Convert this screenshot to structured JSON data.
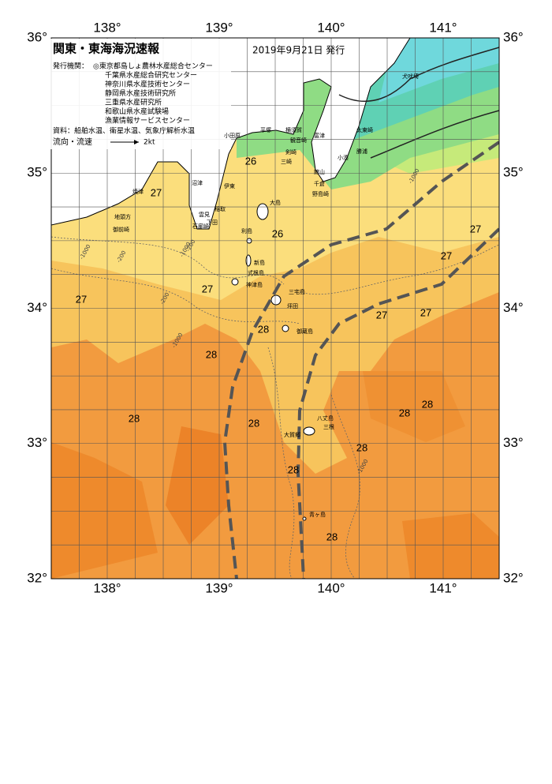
{
  "header": {
    "title": "関東・東海海況速報",
    "date": "2019年9月21日 発行"
  },
  "issuers": {
    "label": "発行機関：",
    "items": [
      "◎東京都島しょ農林水産総合センター",
      "千葉県水産総合研究センター",
      "神奈川県水産技術センター",
      "静岡県水産技術研究所",
      "三重県水産研究所",
      "和歌山県水産試験場",
      "漁業情報サービスセンター"
    ]
  },
  "source": "資料：船舶水温、衛星水温、気象庁解析水温",
  "legend": {
    "label": "流向・流速",
    "speed": "2kt"
  },
  "axes": {
    "lon_ticks": [
      {
        "value": 138,
        "label": "138°"
      },
      {
        "value": 139,
        "label": "139°"
      },
      {
        "value": 140,
        "label": "140°"
      },
      {
        "value": 141,
        "label": "141°"
      }
    ],
    "lat_ticks": [
      {
        "value": 36,
        "label": "36°"
      },
      {
        "value": 35,
        "label": "35°"
      },
      {
        "value": 34,
        "label": "34°"
      },
      {
        "value": 33,
        "label": "33°"
      },
      {
        "value": 32,
        "label": "32°"
      }
    ],
    "lon_range": [
      137.5,
      141.5
    ],
    "lat_range": [
      32,
      36
    ]
  },
  "temperature_labels": [
    26,
    27,
    26,
    27,
    27,
    27,
    27,
    27,
    27,
    28,
    28,
    28,
    28,
    28,
    28,
    28,
    28,
    28
  ],
  "place_names": [
    "犬吠埼",
    "太東崎",
    "勝浦",
    "小湊",
    "館山",
    "千倉",
    "野島崎",
    "富津",
    "観音崎",
    "剣崎",
    "横須賀",
    "平塚",
    "三崎",
    "小田原",
    "伊東",
    "大島",
    "稲取",
    "下田",
    "雲見",
    "石廊崎",
    "沼津",
    "焼津",
    "地頭方",
    "御前崎",
    "利島",
    "新島",
    "式根島",
    "神津島",
    "三宅島",
    "坪田",
    "御蔵島",
    "八丈島",
    "三根",
    "大賀郷",
    "青ヶ島"
  ],
  "contour_labels": [
    "-200",
    "-1000",
    "-200",
    "-1000",
    "-1000",
    "-200",
    "-1000",
    "-1000"
  ]
}
